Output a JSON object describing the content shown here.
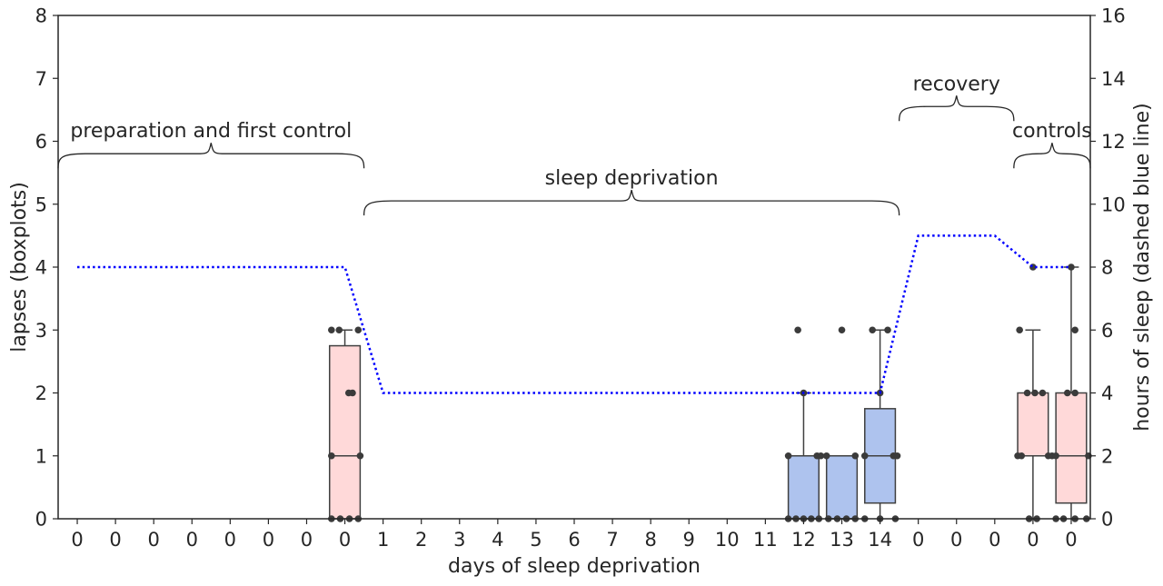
{
  "chart_data": {
    "type": "box",
    "xlabel": "days of sleep deprivation",
    "ylabel_left": "lapses (boxplots)",
    "ylabel_right": "hours of sleep (dashed blue line)",
    "ylim_left": [
      0,
      8
    ],
    "ylim_right": [
      0,
      16
    ],
    "yticks_left": [
      "0",
      "1",
      "2",
      "3",
      "4",
      "5",
      "6",
      "7",
      "8"
    ],
    "yticks_right": [
      "0",
      "2",
      "4",
      "6",
      "8",
      "10",
      "12",
      "14",
      "16"
    ],
    "x_tick_labels": [
      "0",
      "0",
      "0",
      "0",
      "0",
      "0",
      "0",
      "0",
      "1",
      "2",
      "3",
      "4",
      "5",
      "6",
      "7",
      "8",
      "9",
      "10",
      "11",
      "12",
      "13",
      "14",
      "0",
      "0",
      "0",
      "0",
      "0"
    ],
    "grid": false,
    "colors": {
      "control_box": "#ffd9d9",
      "deprivation_box": "#aec3ee",
      "sleep_line": "#0000ff"
    },
    "boxplots": [
      {
        "position": 7,
        "group": "control",
        "q1": 0,
        "median": 1,
        "q3": 2.75,
        "whisker_low": 0,
        "whisker_high": 3,
        "points": [
          [
            -0.35,
            3
          ],
          [
            -0.15,
            3
          ],
          [
            0.35,
            3
          ],
          [
            0.1,
            2
          ],
          [
            0.2,
            2
          ],
          [
            -0.35,
            1
          ],
          [
            0.4,
            1
          ],
          [
            -0.35,
            0
          ],
          [
            -0.12,
            0
          ],
          [
            0.12,
            0
          ],
          [
            0.35,
            0
          ]
        ]
      },
      {
        "position": 19,
        "group": "deprivation",
        "q1": 0,
        "median": 0,
        "q3": 1,
        "whisker_low": 0,
        "whisker_high": 2,
        "points": [
          [
            -0.4,
            1
          ],
          [
            0.35,
            1
          ],
          [
            0.45,
            1
          ],
          [
            0,
            2
          ],
          [
            -0.15,
            3
          ],
          [
            -0.4,
            0
          ],
          [
            -0.2,
            0
          ],
          [
            0,
            0
          ],
          [
            0.2,
            0
          ],
          [
            0.4,
            0
          ]
        ]
      },
      {
        "position": 20,
        "group": "deprivation",
        "q1": 0,
        "median": 0,
        "q3": 1,
        "whisker_low": 0,
        "whisker_high": 1,
        "points": [
          [
            -0.4,
            1
          ],
          [
            0.35,
            1
          ],
          [
            0,
            3
          ],
          [
            -0.35,
            0
          ],
          [
            -0.12,
            0
          ],
          [
            0.12,
            0
          ],
          [
            0.35,
            0
          ]
        ]
      },
      {
        "position": 21,
        "group": "deprivation",
        "q1": 0.25,
        "median": 1,
        "q3": 1.75,
        "whisker_low": 0,
        "whisker_high": 3,
        "points": [
          [
            -0.2,
            3
          ],
          [
            0.2,
            3
          ],
          [
            0,
            2
          ],
          [
            -0.4,
            1
          ],
          [
            0.35,
            1
          ],
          [
            0.45,
            1
          ],
          [
            -0.4,
            0
          ],
          [
            0,
            0
          ],
          [
            0.4,
            0
          ]
        ]
      },
      {
        "position": 25,
        "group": "control",
        "q1": 1,
        "median": 1,
        "q3": 2,
        "whisker_low": 0,
        "whisker_high": 3,
        "points": [
          [
            0,
            4
          ],
          [
            -0.35,
            3
          ],
          [
            -0.15,
            2
          ],
          [
            0.05,
            2
          ],
          [
            0.25,
            2
          ],
          [
            -0.4,
            1
          ],
          [
            -0.3,
            1
          ],
          [
            0.4,
            1
          ],
          [
            0.5,
            1
          ],
          [
            -0.1,
            0
          ],
          [
            0.1,
            0
          ]
        ]
      },
      {
        "position": 26,
        "group": "control",
        "q1": 0.25,
        "median": 1,
        "q3": 2,
        "whisker_low": 0,
        "whisker_high": 4,
        "points": [
          [
            0,
            4
          ],
          [
            0.1,
            3
          ],
          [
            -0.1,
            2
          ],
          [
            0.1,
            2
          ],
          [
            -0.4,
            1
          ],
          [
            0.45,
            1
          ],
          [
            -0.4,
            0
          ],
          [
            -0.2,
            0
          ],
          [
            0.1,
            0
          ],
          [
            0.4,
            0
          ]
        ]
      }
    ],
    "sleep_hours_line": {
      "x": [
        0,
        7,
        8,
        21,
        22,
        24,
        25,
        26
      ],
      "y": [
        8,
        8,
        4,
        4,
        9,
        9,
        8,
        8
      ],
      "style": "dotted"
    },
    "annotations": [
      {
        "text": "preparation and first control",
        "x_start": -0.5,
        "x_end": 7.5,
        "level": 5.6
      },
      {
        "text": "sleep deprivation",
        "x_start": 7.5,
        "x_end": 21.5,
        "level": 4.85
      },
      {
        "text": "recovery",
        "x_start": 21.5,
        "x_end": 24.5,
        "level": 6.35
      },
      {
        "text": "controls",
        "x_start": 24.5,
        "x_end": 26.5,
        "level": 5.6
      }
    ]
  }
}
